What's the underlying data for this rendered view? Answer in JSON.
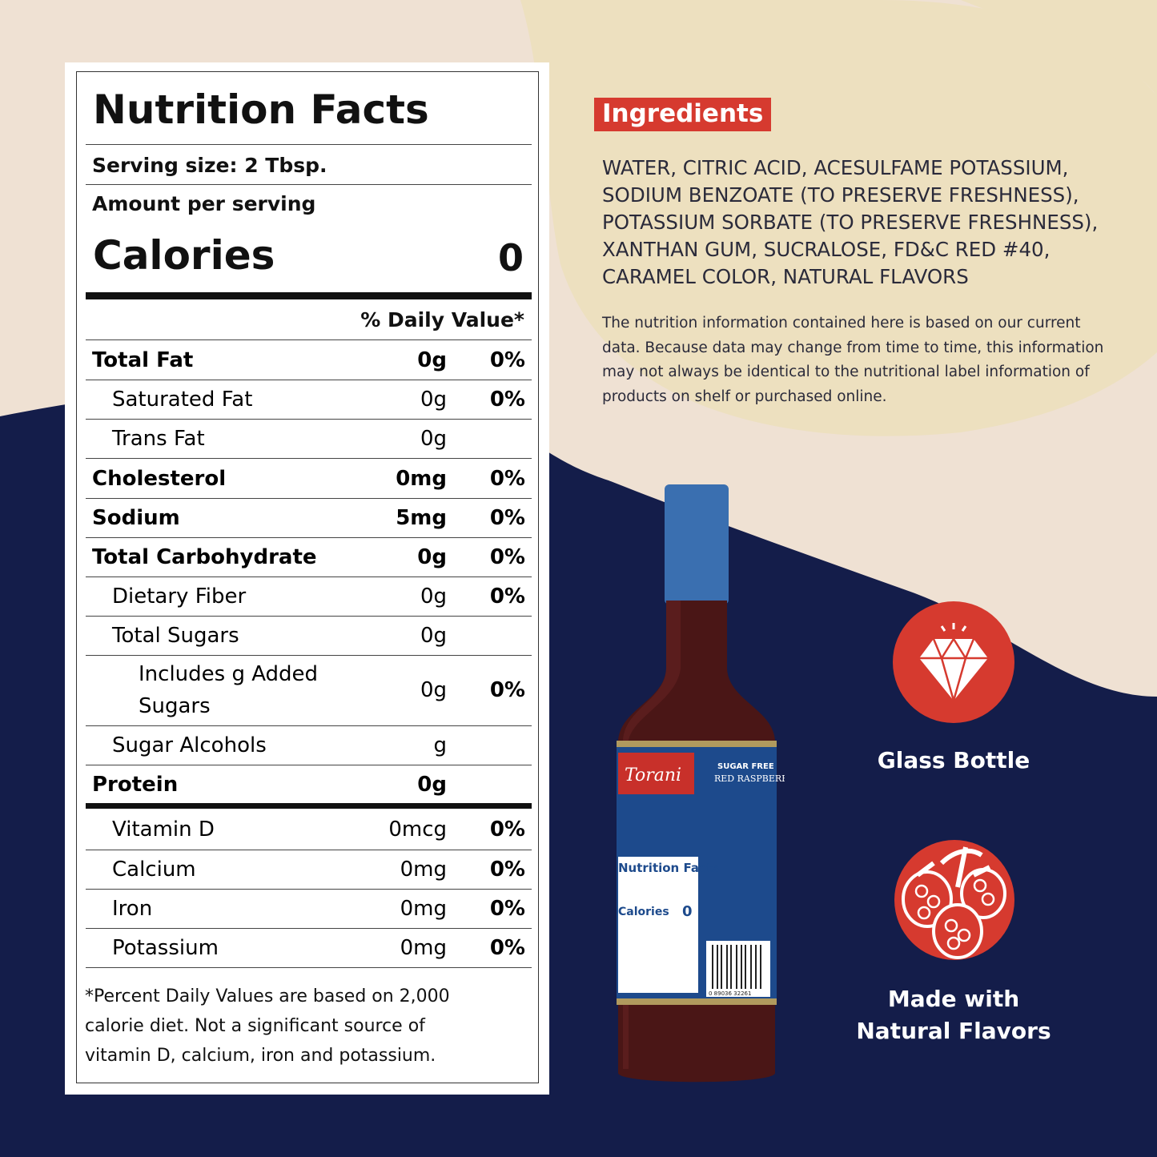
{
  "colors": {
    "navy": "#141d4a",
    "cream": "#efe1d3",
    "sand": "#ede0bf",
    "accent_red": "#d63a2f",
    "bottle_cap": "#3a6fb0",
    "label_blue": "#1d4a8c"
  },
  "nutrition": {
    "title": "Nutrition Facts",
    "serving_size": "Serving size: 2 Tbsp.",
    "amount_per_serving": "Amount per serving",
    "calories_label": "Calories",
    "calories_value": "0",
    "dv_header": "% Daily Value*",
    "rows": [
      {
        "label": "Total Fat",
        "amount": "0g",
        "dv": "0%"
      },
      {
        "label": "Saturated Fat",
        "amount": "0g",
        "dv": "0%"
      },
      {
        "label": "Trans Fat",
        "amount": "0g",
        "dv": ""
      },
      {
        "label": "Cholesterol",
        "amount": "0mg",
        "dv": "0%"
      },
      {
        "label": "Sodium",
        "amount": "5mg",
        "dv": "0%"
      },
      {
        "label": "Total Carbohydrate",
        "amount": "0g",
        "dv": "0%"
      },
      {
        "label": "Dietary Fiber",
        "amount": "0g",
        "dv": "0%"
      },
      {
        "label": "Total Sugars",
        "amount": "0g",
        "dv": ""
      },
      {
        "label": "Includes g Added Sugars",
        "amount": "0g",
        "dv": "0%"
      },
      {
        "label": "Sugar Alcohols",
        "amount": "g",
        "dv": ""
      },
      {
        "label": "Protein",
        "amount": "0g",
        "dv": ""
      }
    ],
    "vitamins": [
      {
        "label": "Vitamin D",
        "amount": "0mcg",
        "dv": "0%"
      },
      {
        "label": "Calcium",
        "amount": "0mg",
        "dv": "0%"
      },
      {
        "label": "Iron",
        "amount": "0mg",
        "dv": "0%"
      },
      {
        "label": "Potassium",
        "amount": "0mg",
        "dv": "0%"
      }
    ],
    "footnote": "*Percent Daily Values are based on 2,000 calorie diet. Not a significant source of vitamin D, calcium, iron and potassium."
  },
  "ingredients": {
    "heading": "Ingredients",
    "text": "WATER, CITRIC ACID, ACESULFAME POTASSIUM, SODIUM BENZOATE (TO PRESERVE FRESHNESS), POTASSIUM SORBATE (TO PRESERVE FRESHNESS), XANTHAN GUM, SUCRALOSE, FD&C RED #40, CARAMEL COLOR, NATURAL FLAVORS",
    "note": "The nutrition information contained here is based on our current data. Because data may change from time to time, this information may not always be identical to the nutritional label information of products on shelf or purchased online."
  },
  "bottle": {
    "brand": "Torani",
    "tag": "SUGAR FREE",
    "flavor": "RED RASPBERRY",
    "label_title": "Nutrition Facts",
    "label_calories": "Calories",
    "label_calories_value": "0",
    "barcode": "0 89036 32261"
  },
  "features": [
    {
      "icon": "diamond-icon",
      "label": "Glass Bottle"
    },
    {
      "icon": "raspberry-icon",
      "label": "Made with Natural Flavors"
    }
  ]
}
